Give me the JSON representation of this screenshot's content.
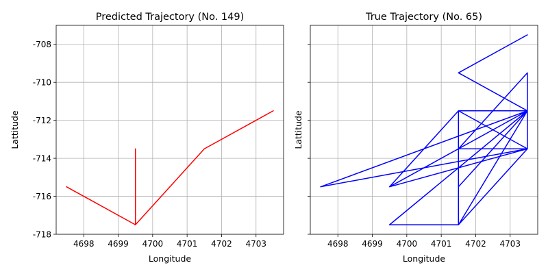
{
  "chart_data": [
    {
      "type": "line",
      "title": "Predicted Trajectory (No. 149)",
      "xlabel": "Longitude",
      "ylabel": "Lattitude",
      "xlim": [
        4697.2,
        4703.8
      ],
      "ylim": [
        -718,
        -707
      ],
      "xticks": [
        "4698",
        "4699",
        "4700",
        "4701",
        "4702",
        "4703"
      ],
      "xtick_values": [
        4698,
        4699,
        4700,
        4701,
        4702,
        4703
      ],
      "yticks": [
        "-708",
        "-710",
        "-712",
        "-714",
        "-716",
        "-718"
      ],
      "ytick_values": [
        -708,
        -710,
        -712,
        -714,
        -716,
        -718
      ],
      "show_yticklabels": true,
      "grid": true,
      "color": "#ff0000",
      "series": [
        {
          "x": [
            4699.5,
            4699.5,
            4697.5,
            4699.5,
            4701.5,
            4703.5
          ],
          "y": [
            -713.5,
            -717.5,
            -715.5,
            -717.5,
            -713.5,
            -711.5
          ]
        }
      ]
    },
    {
      "type": "line",
      "title": "True Trajectory (No. 65)",
      "xlabel": "Longitude",
      "ylabel": "Lattitude",
      "xlim": [
        4697.2,
        4703.8
      ],
      "ylim": [
        -718,
        -707
      ],
      "xticks": [
        "4698",
        "4699",
        "4700",
        "4701",
        "4702",
        "4703"
      ],
      "xtick_values": [
        4698,
        4699,
        4700,
        4701,
        4702,
        4703
      ],
      "yticks": [
        "-708",
        "-710",
        "-712",
        "-714",
        "-716",
        "-718"
      ],
      "ytick_values": [
        -708,
        -710,
        -712,
        -714,
        -716,
        -718
      ],
      "show_yticklabels": false,
      "grid": true,
      "color": "#0000ff",
      "series": [
        {
          "x": [
            4703.5,
            4701.5,
            4703.5,
            4703.5,
            4701.5,
            4703.5,
            4697.5,
            4703.5,
            4701.5,
            4703.5,
            4699.5,
            4703.5,
            4701.5,
            4701.5,
            4703.5,
            4703.5,
            4699.5,
            4701.5,
            4703.5,
            4699.5,
            4701.5,
            4701.5,
            4703.5,
            4703.5,
            4701.5,
            4703.5,
            4703.5,
            4697.5
          ],
          "y": [
            -707.5,
            -709.5,
            -711.5,
            -713.5,
            -713.5,
            -711.5,
            -715.5,
            -713.5,
            -717.5,
            -711.5,
            -715.5,
            -713.5,
            -711.5,
            -715.5,
            -711.5,
            -713.5,
            -715.5,
            -711.5,
            -711.5,
            -717.5,
            -717.5,
            -713.5,
            -713.5,
            -711.5,
            -713.5,
            -709.5,
            -713.5,
            -715.5
          ]
        }
      ]
    }
  ]
}
